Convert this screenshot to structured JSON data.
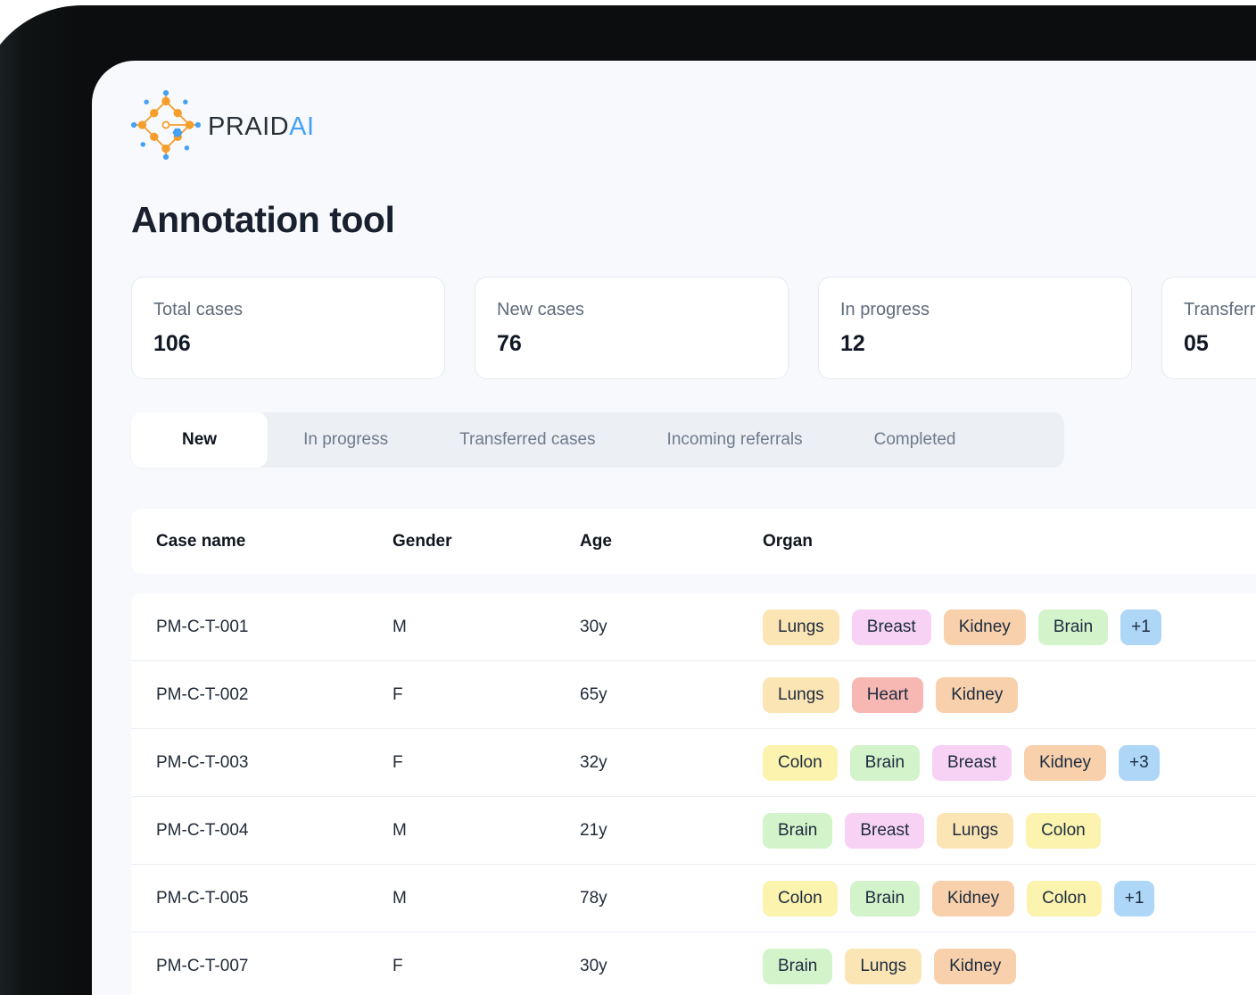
{
  "brand": {
    "wordmark_primary": "PRAID",
    "wordmark_secondary": "AI"
  },
  "page": {
    "title": "Annotation tool"
  },
  "stats": [
    {
      "label": "Total cases",
      "value": "106"
    },
    {
      "label": "New cases",
      "value": "76"
    },
    {
      "label": "In progress",
      "value": "12"
    },
    {
      "label": "Transferred",
      "value": "05"
    }
  ],
  "tabs": [
    {
      "label": "New",
      "active": true
    },
    {
      "label": "In progress",
      "active": false
    },
    {
      "label": "Transferred cases",
      "active": false
    },
    {
      "label": "Incoming referrals",
      "active": false
    },
    {
      "label": "Completed",
      "active": false
    }
  ],
  "table": {
    "columns": [
      "Case name",
      "Gender",
      "Age",
      "Organ"
    ],
    "rows": [
      {
        "case_name": "PM-C-T-001",
        "gender": "M",
        "age": "30y",
        "organs": [
          "Lungs",
          "Breast",
          "Kidney",
          "Brain"
        ],
        "more": "+1"
      },
      {
        "case_name": "PM-C-T-002",
        "gender": "F",
        "age": "65y",
        "organs": [
          "Lungs",
          "Heart",
          "Kidney"
        ],
        "more": null
      },
      {
        "case_name": "PM-C-T-003",
        "gender": "F",
        "age": "32y",
        "organs": [
          "Colon",
          "Brain",
          "Breast",
          "Kidney"
        ],
        "more": "+3"
      },
      {
        "case_name": "PM-C-T-004",
        "gender": "M",
        "age": "21y",
        "organs": [
          "Brain",
          "Breast",
          "Lungs",
          "Colon"
        ],
        "more": null
      },
      {
        "case_name": "PM-C-T-005",
        "gender": "M",
        "age": "78y",
        "organs": [
          "Colon",
          "Brain",
          "Kidney",
          "Colon"
        ],
        "more": "+1"
      },
      {
        "case_name": "PM-C-T-007",
        "gender": "F",
        "age": "30y",
        "organs": [
          "Brain",
          "Lungs",
          "Kidney"
        ],
        "more": null
      }
    ]
  },
  "organ_colors": {
    "Lungs": "#fce5b4",
    "Heart": "#f7b7b2",
    "Kidney": "#f8d0ab",
    "Brain": "#d3f3cb",
    "Breast": "#f7d2f5",
    "Colon": "#fbf3ae",
    "more": "#aed6f7"
  },
  "brand_colors": {
    "logo_orange": "#f59e2d",
    "logo_blue": "#45a1f4"
  }
}
